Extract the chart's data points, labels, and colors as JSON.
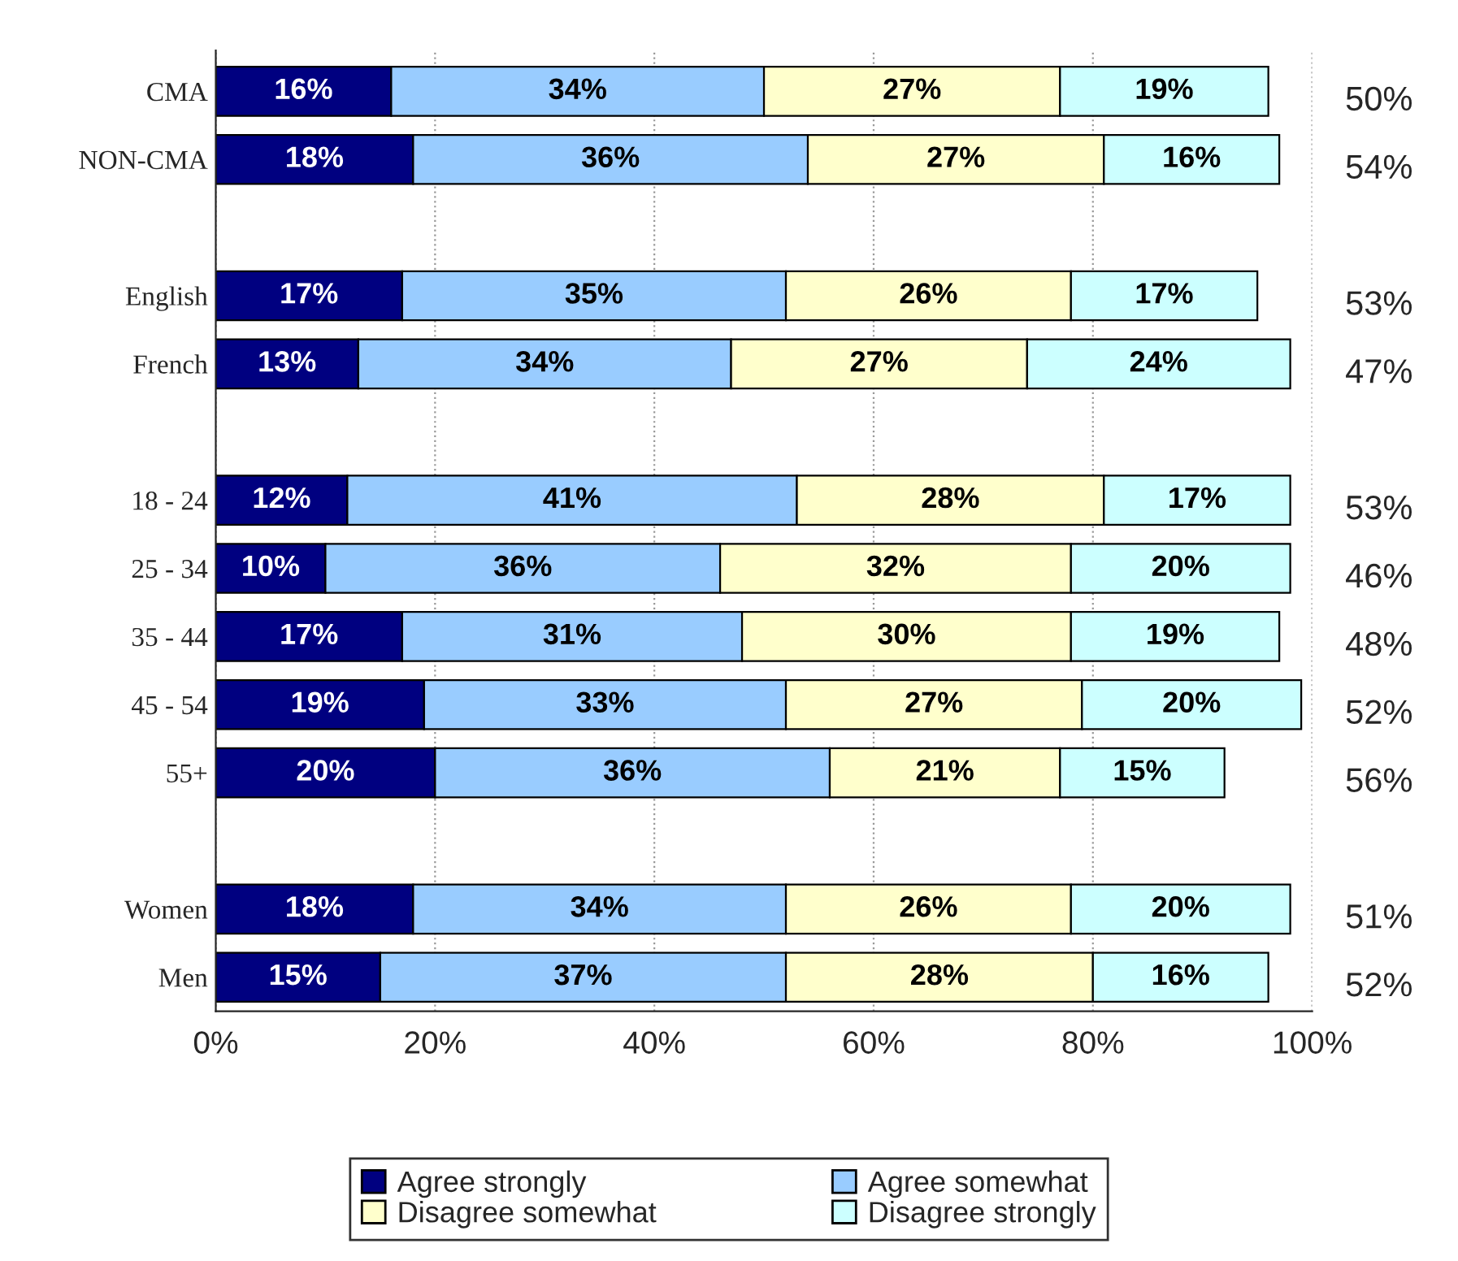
{
  "chart_data": {
    "type": "bar",
    "orientation": "horizontal",
    "stacked": true,
    "categories": [
      "CMA",
      "NON-CMA",
      null,
      "English",
      "French",
      null,
      "18 - 24",
      "25 - 34",
      "35 - 44",
      "45 - 54",
      "55+",
      null,
      "Women",
      "Men"
    ],
    "series": [
      {
        "name": "Agree strongly",
        "color": "#000080",
        "values": [
          16,
          18,
          null,
          17,
          13,
          null,
          12,
          10,
          17,
          19,
          20,
          null,
          18,
          15
        ],
        "value_labels": [
          "16%",
          "18%",
          null,
          "17%",
          "13%",
          null,
          "12%",
          "10%",
          "17%",
          "19%",
          "20%",
          null,
          "18%",
          "15%"
        ]
      },
      {
        "name": "Agree somewhat",
        "color": "#99ccff",
        "values": [
          34,
          36,
          null,
          35,
          34,
          null,
          41,
          36,
          31,
          33,
          36,
          null,
          34,
          37
        ],
        "value_labels": [
          "34%",
          "36%",
          null,
          "35%",
          "34%",
          null,
          "41%",
          "36%",
          "31%",
          "33%",
          "36%",
          null,
          "34%",
          "37%"
        ]
      },
      {
        "name": "Disagree somewhat",
        "color": "#ffffcc",
        "values": [
          27,
          27,
          null,
          26,
          27,
          null,
          28,
          32,
          30,
          27,
          21,
          null,
          26,
          28
        ],
        "value_labels": [
          "27%",
          "27%",
          null,
          "26%",
          "27%",
          null,
          "28%",
          "32%",
          "30%",
          "27%",
          "21%",
          null,
          "26%",
          "28%"
        ]
      },
      {
        "name": "Disagree strongly",
        "color": "#ccffff",
        "values": [
          19,
          16,
          null,
          17,
          24,
          null,
          17,
          20,
          19,
          20,
          15,
          null,
          20,
          16
        ],
        "value_labels": [
          "19%",
          "16%",
          null,
          "17%",
          "24%",
          null,
          "17%",
          "20%",
          "19%",
          "20%",
          "15%",
          null,
          "20%",
          "16%"
        ]
      }
    ],
    "xlim": [
      0,
      100
    ],
    "xticks": [
      {
        "value": 0,
        "label": "0%"
      },
      {
        "value": 20,
        "label": "20%"
      },
      {
        "value": 40,
        "label": "40%"
      },
      {
        "value": 60,
        "label": "60%"
      },
      {
        "value": 80,
        "label": "80%"
      },
      {
        "value": 100,
        "label": "100%"
      }
    ],
    "grid": "x",
    "legend": "bottom",
    "annotations": [
      "50%",
      "54%",
      "53%",
      "47%",
      "53%",
      "46%",
      "48%",
      "52%",
      "56%",
      "51%",
      "52%"
    ]
  }
}
